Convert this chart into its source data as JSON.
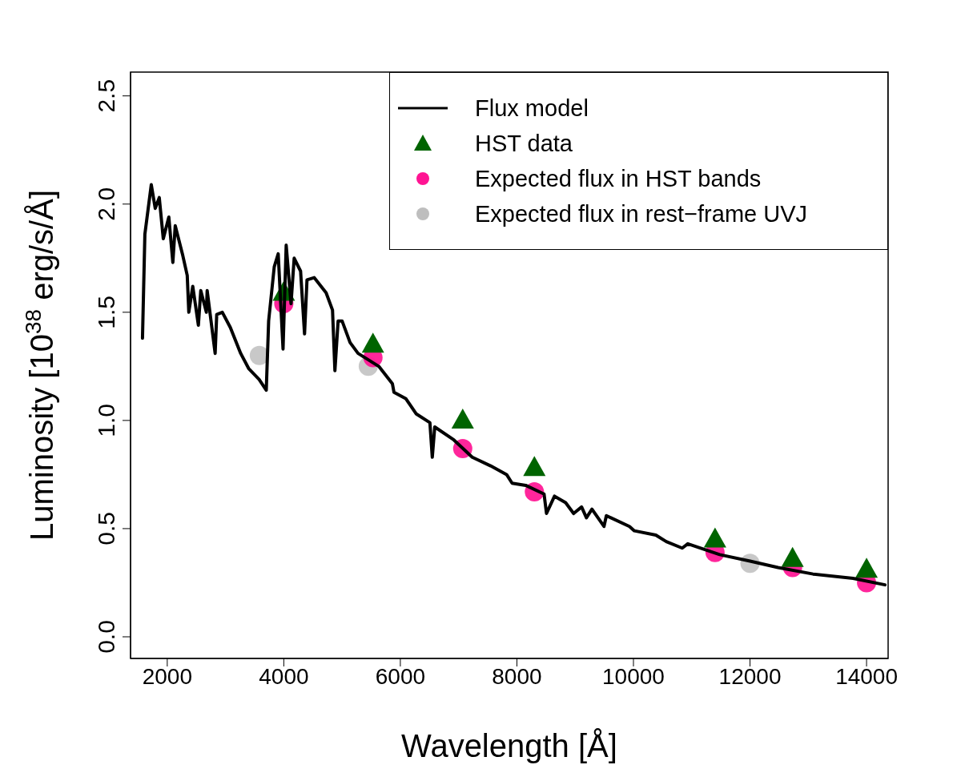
{
  "chart_data": {
    "type": "line",
    "xlabel": "Wavelength [Å]",
    "ylabel": "Luminosity [10$^{38}$ erg/s/Å]",
    "xlim": [
      1370,
      14370
    ],
    "ylim": [
      -0.1,
      2.61
    ],
    "xticks": [
      2000,
      4000,
      6000,
      8000,
      10000,
      12000,
      14000
    ],
    "yticks": [
      {
        "value": 0,
        "label": "0.0"
      },
      0.5,
      {
        "value": 1,
        "label": "1.0"
      },
      1.5,
      {
        "value": 2,
        "label": "2.0"
      },
      2.5
    ],
    "grid": false,
    "legend": "top right",
    "series": [
      {
        "name": "Flux model",
        "color": "#000000",
        "marker": "none",
        "line_style": "solid",
        "x": [
          1575,
          1616,
          1726,
          1794,
          1863,
          1932,
          2027,
          2096,
          2137,
          2260,
          2343,
          2370,
          2438,
          2534,
          2575,
          2671,
          2685,
          2822,
          2849,
          2945,
          3082,
          3260,
          3397,
          3576,
          3699,
          3740,
          3836,
          3904,
          3987,
          4041,
          4124,
          4178,
          4288,
          4356,
          4398,
          4521,
          4726,
          4836,
          4877,
          4932,
          5000,
          5137,
          5274,
          5630,
          5863,
          5891,
          6096,
          6274,
          6507,
          6548,
          6590,
          6918,
          7233,
          7549,
          7823,
          7918,
          8151,
          8466,
          8508,
          8645,
          8836,
          8973,
          9110,
          9193,
          9288,
          9494,
          9535,
          9932,
          10015,
          10384,
          10563,
          10837,
          10932,
          11480,
          12001,
          12481,
          13083,
          13768,
          14316
        ],
        "values": [
          1.38,
          1.86,
          2.09,
          1.98,
          2.03,
          1.84,
          1.94,
          1.73,
          1.9,
          1.77,
          1.67,
          1.5,
          1.62,
          1.44,
          1.6,
          1.5,
          1.6,
          1.31,
          1.49,
          1.5,
          1.43,
          1.31,
          1.24,
          1.19,
          1.14,
          1.46,
          1.71,
          1.77,
          1.33,
          1.81,
          1.54,
          1.75,
          1.69,
          1.4,
          1.65,
          1.66,
          1.59,
          1.51,
          1.23,
          1.46,
          1.46,
          1.36,
          1.31,
          1.25,
          1.17,
          1.13,
          1.1,
          1.03,
          0.99,
          0.83,
          0.97,
          0.91,
          0.83,
          0.79,
          0.75,
          0.71,
          0.7,
          0.66,
          0.57,
          0.65,
          0.62,
          0.57,
          0.6,
          0.55,
          0.59,
          0.51,
          0.56,
          0.51,
          0.49,
          0.47,
          0.44,
          0.41,
          0.43,
          0.38,
          0.35,
          0.32,
          0.29,
          0.27,
          0.24
        ]
      },
      {
        "name": "HST data",
        "type": "scatter",
        "color": "#006400",
        "marker": "triangle",
        "x": [
          4000,
          5530,
          7070,
          8300,
          11400,
          12730,
          14000
        ],
        "values": [
          1.59,
          1.35,
          1.0,
          0.78,
          0.45,
          0.36,
          0.31
        ]
      },
      {
        "name": "Expected flux in HST bands",
        "type": "scatter",
        "color": "#ff1493",
        "marker": "circle",
        "x": [
          4000,
          5530,
          7070,
          8300,
          11400,
          12730,
          14000
        ],
        "values": [
          1.54,
          1.29,
          0.87,
          0.67,
          0.39,
          0.32,
          0.25
        ]
      },
      {
        "name": "Expected flux in rest−frame UVJ",
        "type": "scatter",
        "color": "#bebebe",
        "marker": "circle",
        "x": [
          3580,
          5450,
          12000
        ],
        "values": [
          1.3,
          1.25,
          0.34
        ]
      }
    ]
  }
}
